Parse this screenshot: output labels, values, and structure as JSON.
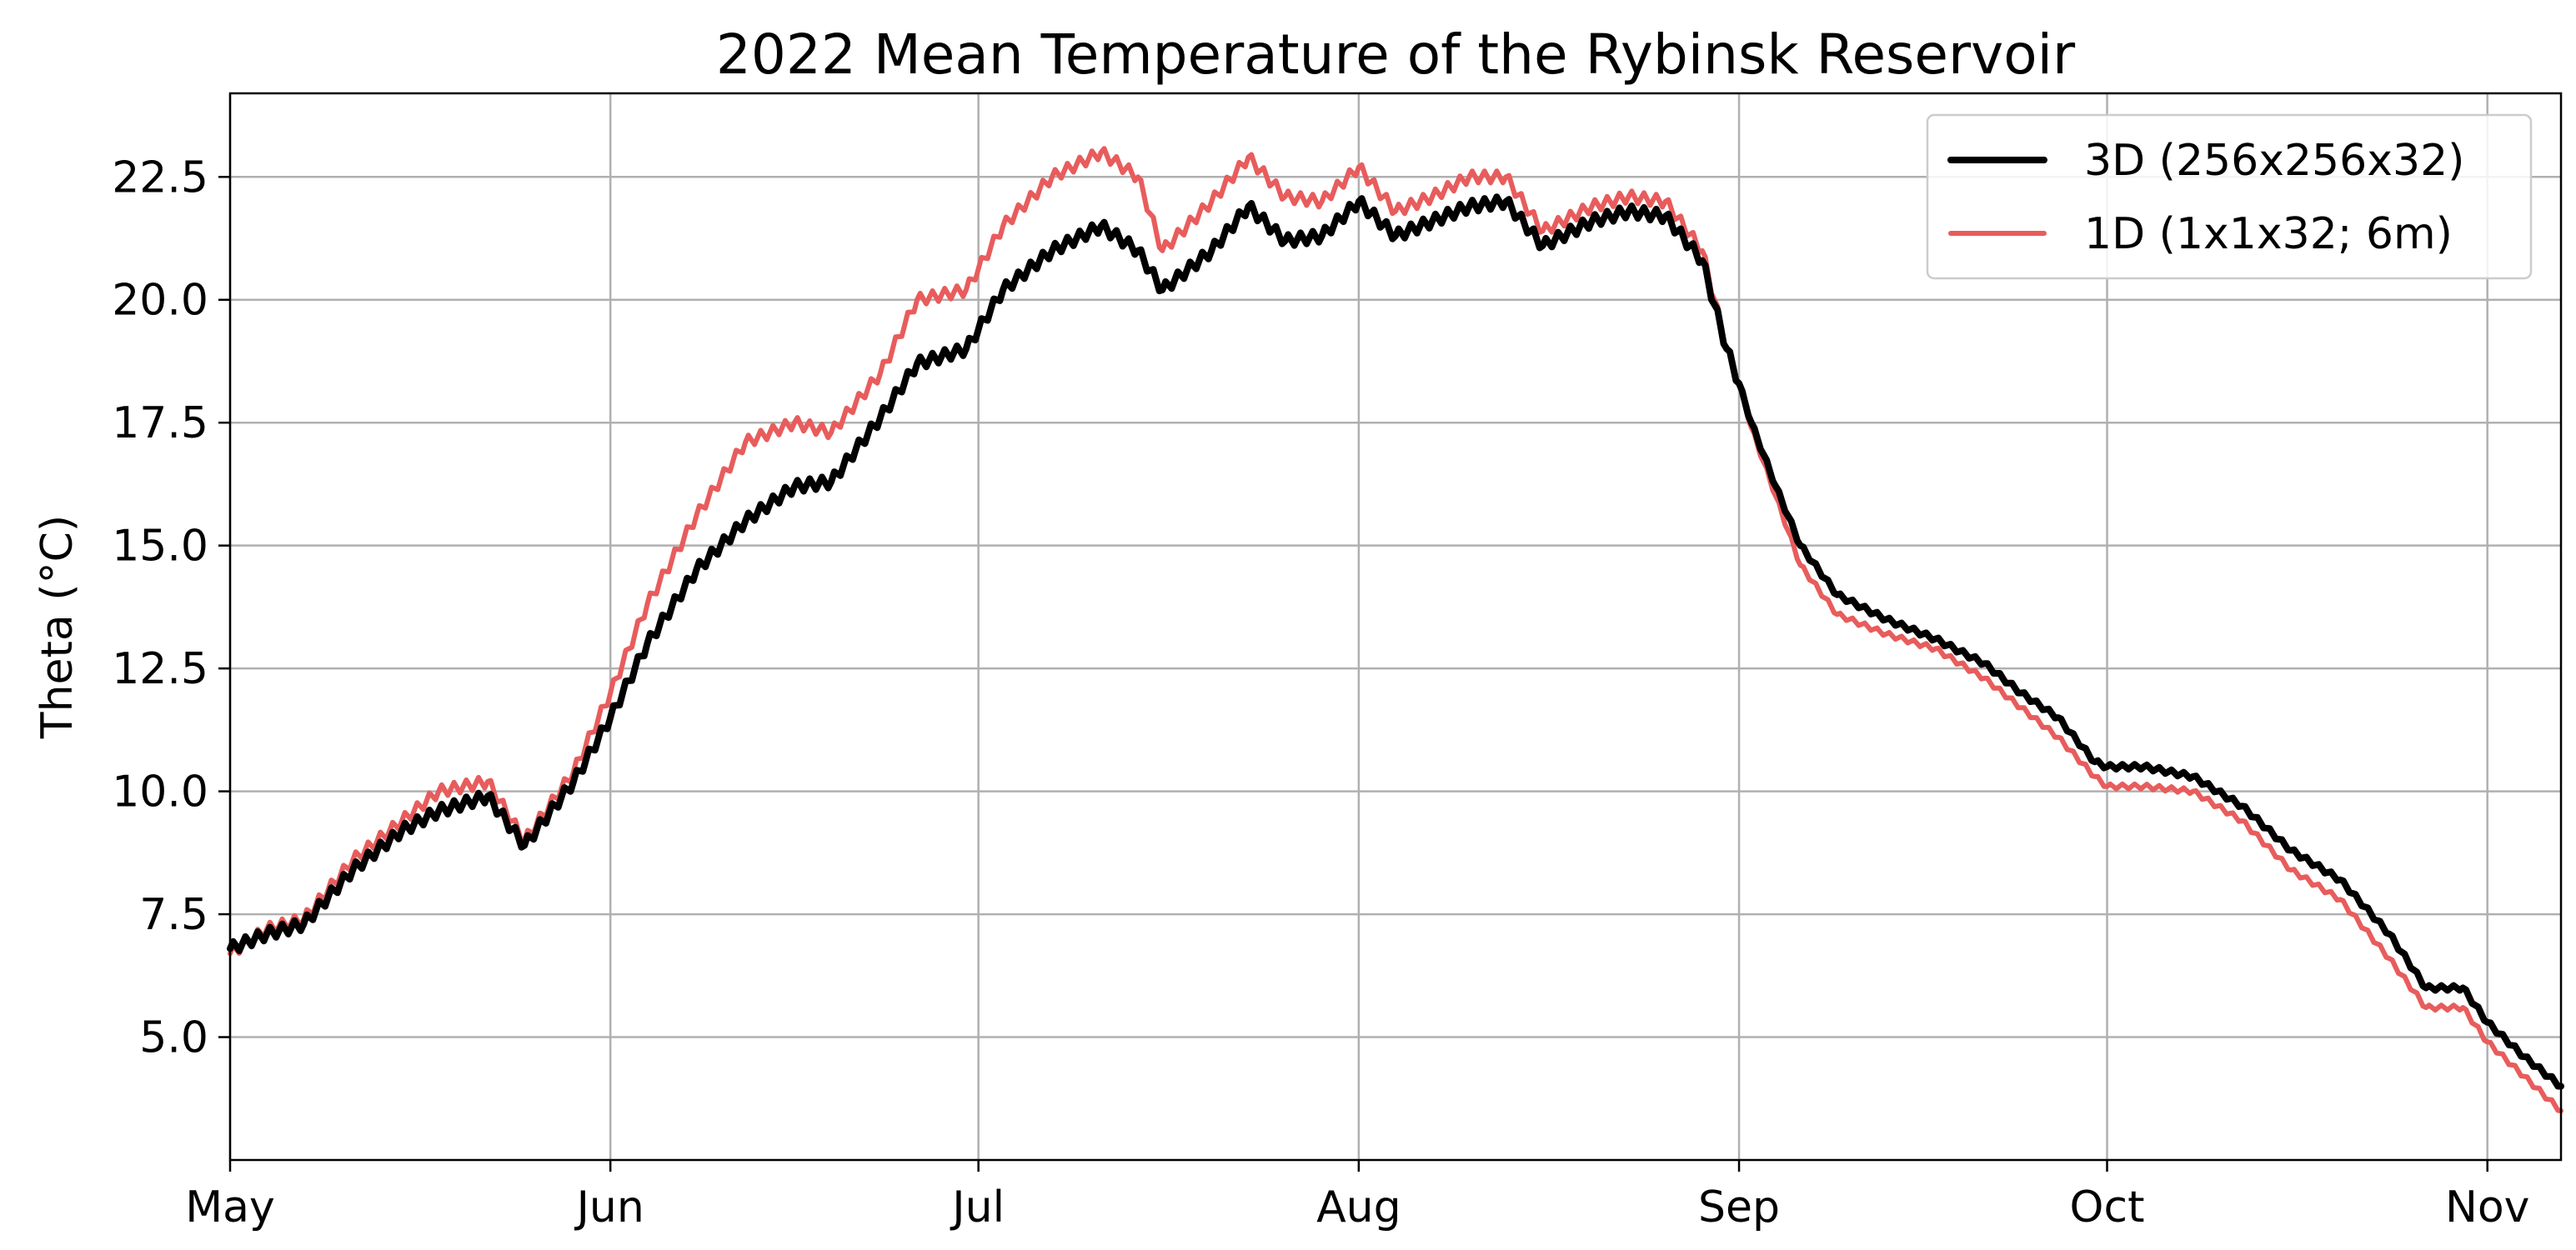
{
  "chart_data": {
    "type": "line",
    "title": "2022 Mean Temperature of the Rybinsk Reservoir",
    "xlabel": "",
    "ylabel": "Theta (°C)",
    "x_ticks": [
      {
        "label": "May",
        "day": 0
      },
      {
        "label": "Jun",
        "day": 31
      },
      {
        "label": "Jul",
        "day": 61
      },
      {
        "label": "Aug",
        "day": 92
      },
      {
        "label": "Sep",
        "day": 123
      },
      {
        "label": "Oct",
        "day": 153
      },
      {
        "label": "Nov",
        "day": 184
      }
    ],
    "xlim_days": [
      0,
      190
    ],
    "y_ticks": [
      "5.0",
      "7.5",
      "10.0",
      "12.5",
      "15.0",
      "17.5",
      "20.0",
      "22.5"
    ],
    "ylim": [
      2.5,
      24.2
    ],
    "grid": true,
    "legend_position": "top-right",
    "series": [
      {
        "name": "3D (256x256x32)",
        "color": "#000000",
        "x_days": [
          0,
          3,
          6,
          10,
          14,
          17,
          21,
          24,
          28,
          31,
          34,
          38,
          42,
          46,
          49,
          53,
          56,
          60,
          63,
          67,
          71,
          74,
          76,
          80,
          83,
          86,
          89,
          92,
          95,
          98,
          101,
          104,
          107,
          111,
          114,
          117,
          120,
          122,
          123,
          124,
          126,
          128,
          131,
          135,
          139,
          143,
          146,
          149,
          152,
          153,
          156,
          160,
          164,
          168,
          172,
          176,
          179,
          180,
          182,
          184,
          187,
          190
        ],
        "values": [
          6.8,
          7.1,
          7.3,
          8.4,
          9.2,
          9.6,
          9.9,
          8.9,
          10.2,
          11.5,
          13.0,
          14.5,
          15.5,
          16.2,
          16.3,
          17.6,
          18.7,
          19.0,
          20.2,
          21.0,
          21.5,
          21.0,
          20.2,
          21.0,
          21.9,
          21.2,
          21.3,
          22.0,
          21.3,
          21.6,
          21.9,
          22.0,
          21.1,
          21.6,
          21.8,
          21.7,
          20.8,
          19.0,
          18.3,
          17.5,
          16.2,
          15.0,
          14.0,
          13.5,
          13.1,
          12.6,
          12.0,
          11.5,
          10.6,
          10.5,
          10.5,
          10.3,
          9.7,
          8.8,
          8.2,
          7.1,
          6.0,
          6.0,
          6.0,
          5.3,
          4.6,
          4.0
        ]
      },
      {
        "name": "1D (1x1x32; 6m)",
        "color": "#e85c5c",
        "x_days": [
          0,
          3,
          6,
          10,
          14,
          17,
          21,
          24,
          28,
          31,
          34,
          38,
          42,
          46,
          49,
          53,
          56,
          60,
          63,
          67,
          71,
          74,
          76,
          80,
          83,
          86,
          89,
          92,
          95,
          98,
          101,
          104,
          107,
          111,
          114,
          117,
          120,
          122,
          123,
          124,
          126,
          128,
          131,
          135,
          139,
          143,
          146,
          149,
          152,
          153,
          156,
          160,
          164,
          168,
          172,
          176,
          179,
          180,
          182,
          184,
          187,
          190
        ],
        "values": [
          6.7,
          7.2,
          7.4,
          8.6,
          9.4,
          10.0,
          10.2,
          9.0,
          10.4,
          12.0,
          13.8,
          15.6,
          17.1,
          17.5,
          17.3,
          18.5,
          20.0,
          20.2,
          21.5,
          22.5,
          23.0,
          22.5,
          21.0,
          22.0,
          22.9,
          22.1,
          22.0,
          22.7,
          21.8,
          22.1,
          22.5,
          22.5,
          21.4,
          21.9,
          22.1,
          22.0,
          21.0,
          19.0,
          18.3,
          17.4,
          16.0,
          14.6,
          13.6,
          13.2,
          12.9,
          12.3,
          11.7,
          11.1,
          10.3,
          10.1,
          10.1,
          10.0,
          9.4,
          8.4,
          7.8,
          6.6,
          5.6,
          5.6,
          5.6,
          4.9,
          4.2,
          3.5
        ]
      }
    ]
  }
}
